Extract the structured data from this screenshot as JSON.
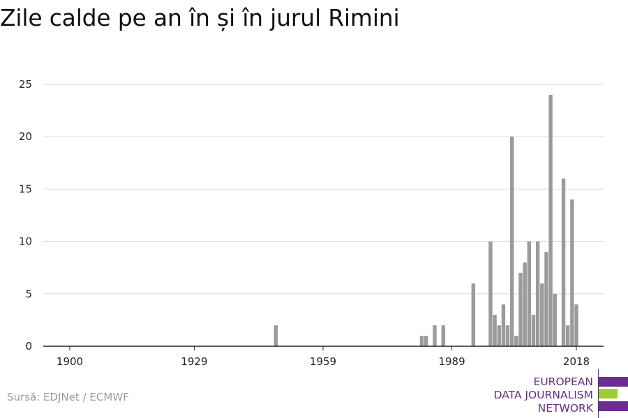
{
  "title": "Zile calde pe an în și în jurul Rimini",
  "source": "Sursă: EDJNet / ECMWF",
  "logo": {
    "lines": [
      "EUROPEAN",
      "DATA JOURNALISM",
      "NETWORK"
    ],
    "colors": {
      "purple": "#6b2c8f",
      "green": "#9ccf2f"
    }
  },
  "colors": {
    "bar": "#9b9b9b",
    "grid": "#d9d9d9",
    "axis": "#222222"
  },
  "chart_data": {
    "type": "bar",
    "title": "Zile calde pe an în și în jurul Rimini",
    "xlabel": "",
    "ylabel": "",
    "xlim": [
      1896,
      2024
    ],
    "ylim": [
      0,
      25
    ],
    "grid": true,
    "x_ticks": [
      1900,
      1929,
      1959,
      1989,
      2018
    ],
    "y_ticks": [
      0,
      5,
      10,
      15,
      20,
      25
    ],
    "categories": [
      1948,
      1982,
      1983,
      1985,
      1987,
      1994,
      1998,
      1999,
      2000,
      2001,
      2002,
      2003,
      2004,
      2005,
      2006,
      2007,
      2008,
      2009,
      2010,
      2011,
      2012,
      2013,
      2014,
      2015,
      2016,
      2017,
      2018,
      2019
    ],
    "values": [
      2,
      1,
      1,
      2,
      2,
      6,
      10,
      3,
      2,
      4,
      2,
      20,
      1,
      7,
      8,
      10,
      3,
      10,
      6,
      9,
      24,
      5,
      0,
      16,
      2,
      14,
      4,
      0
    ]
  }
}
